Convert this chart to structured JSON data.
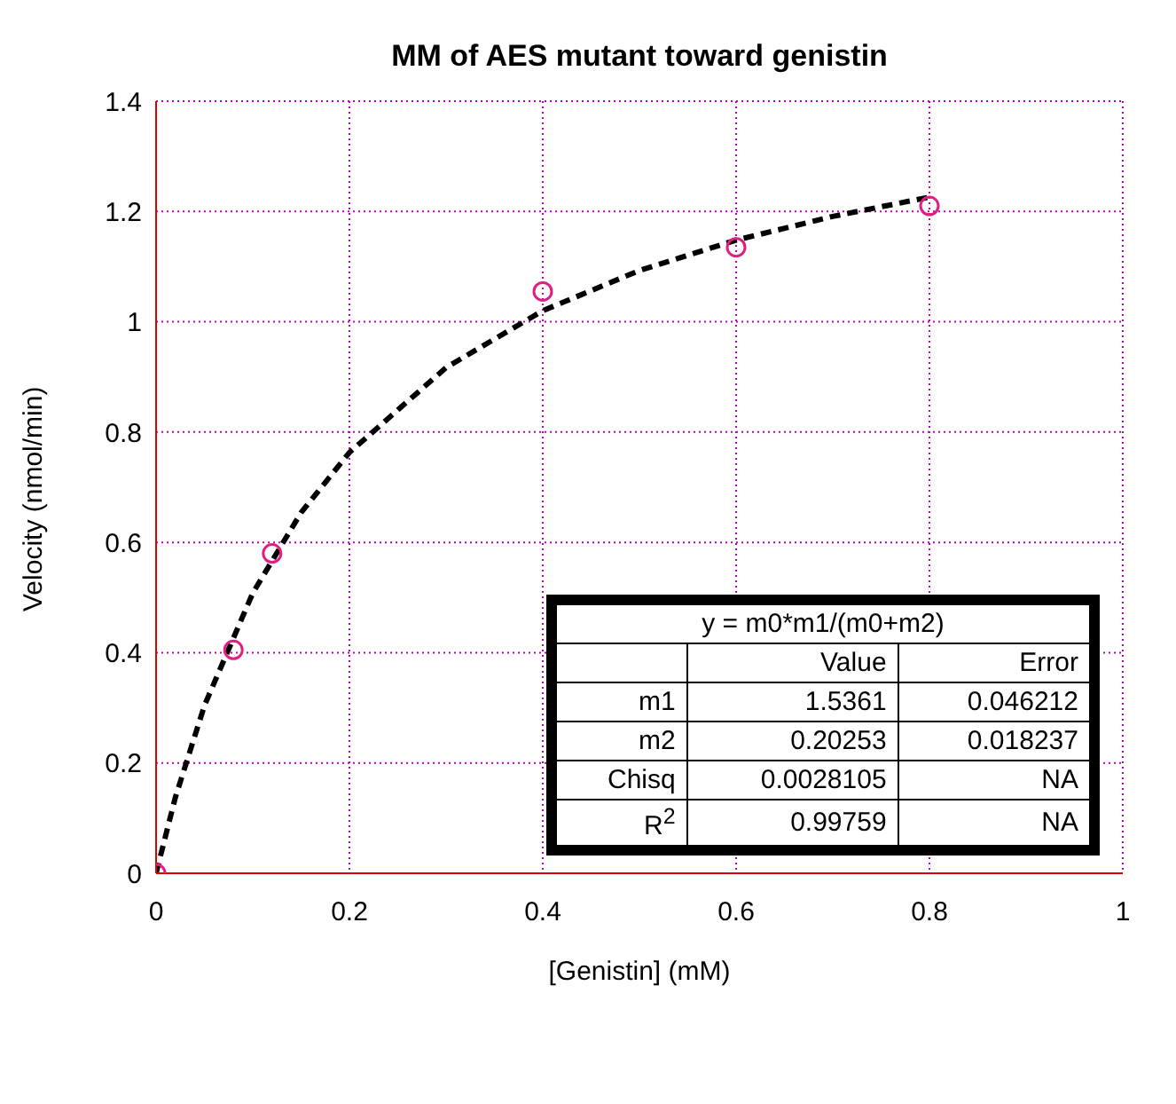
{
  "chart_data": {
    "type": "scatter",
    "title": "MM of AES mutant toward genistin",
    "xlabel": "[Genistin] (mM)",
    "ylabel": "Velocity (nmol/min)",
    "xlim": [
      0,
      1
    ],
    "xticks": [
      0,
      0.2,
      0.4,
      0.6,
      0.8,
      1
    ],
    "ylim": [
      0,
      1.4
    ],
    "yticks": [
      0,
      0.2,
      0.4,
      0.6,
      0.8,
      1,
      1.2,
      1.4
    ],
    "grid": true,
    "series": [
      {
        "color": "#e0207f",
        "marker": "circle",
        "x": [
          0,
          0.08,
          0.12,
          0.4,
          0.6,
          0.8
        ],
        "values": [
          0,
          0.405,
          0.58,
          1.055,
          1.135,
          1.21
        ]
      },
      {
        "type": "line",
        "color": "#000000",
        "marker": "none",
        "line_style": "dashed",
        "x": [
          0,
          0.02,
          0.05,
          0.1,
          0.15,
          0.2,
          0.3,
          0.4,
          0.5,
          0.6,
          0.7,
          0.8
        ],
        "values": [
          0,
          0.138,
          0.304,
          0.508,
          0.654,
          0.763,
          0.917,
          1.02,
          1.093,
          1.148,
          1.191,
          1.226
        ]
      }
    ],
    "annotations": [
      "y = m0*m1/(m0+m2)",
      "Value",
      "Error",
      "m1",
      "1.5361",
      "0.046212",
      "m2",
      "0.20253",
      "0.018237",
      "Chisq",
      "0.0028105",
      "NA",
      "R$^{2}$",
      "0.99759",
      "NA"
    ]
  }
}
